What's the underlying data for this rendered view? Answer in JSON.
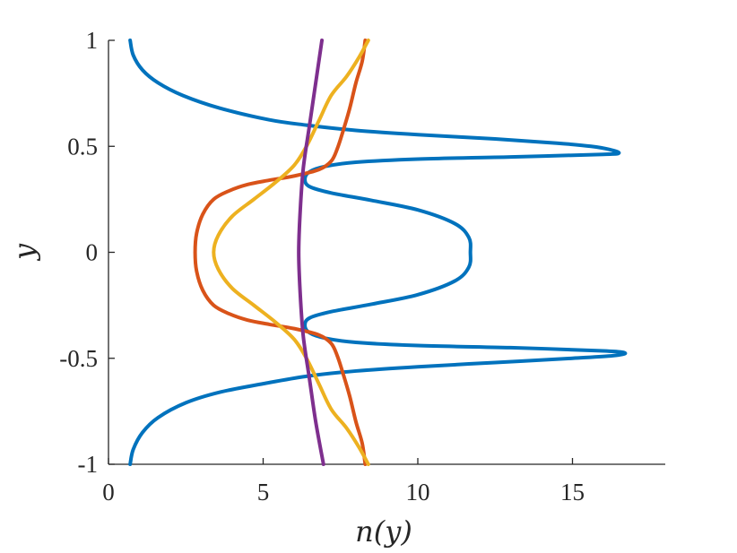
{
  "chart_data": {
    "type": "line",
    "title": "",
    "xlabel": "n(y)",
    "ylabel": "y",
    "xlim": [
      0,
      18
    ],
    "ylim": [
      -1,
      1
    ],
    "xticks": [
      0,
      5,
      10,
      15
    ],
    "xtick_labels": [
      "0",
      "5",
      "10",
      "15"
    ],
    "yticks": [
      -1,
      -0.5,
      0,
      0.5,
      1
    ],
    "ytick_labels": [
      "-1",
      "-0.5",
      "0",
      "0.5",
      "1"
    ],
    "grid": false,
    "legend": "none",
    "series": [
      {
        "color": "#0072BD",
        "points": [
          [
            0.7,
            1.0
          ],
          [
            0.8,
            0.93
          ],
          [
            1.1,
            0.86
          ],
          [
            1.6,
            0.8
          ],
          [
            2.4,
            0.74
          ],
          [
            3.6,
            0.68
          ],
          [
            5.2,
            0.625
          ],
          [
            6.4,
            0.6
          ],
          [
            8.0,
            0.575
          ],
          [
            10.0,
            0.555
          ],
          [
            12.5,
            0.535
          ],
          [
            14.5,
            0.515
          ],
          [
            15.6,
            0.5
          ],
          [
            16.2,
            0.485
          ],
          [
            16.5,
            0.468
          ],
          [
            16.0,
            0.462
          ],
          [
            13.0,
            0.45
          ],
          [
            10.0,
            0.44
          ],
          [
            8.0,
            0.425
          ],
          [
            7.0,
            0.405
          ],
          [
            6.5,
            0.38
          ],
          [
            6.35,
            0.345
          ],
          [
            6.5,
            0.31
          ],
          [
            7.2,
            0.28
          ],
          [
            8.5,
            0.245
          ],
          [
            10.0,
            0.2
          ],
          [
            11.2,
            0.135
          ],
          [
            11.65,
            0.07
          ],
          [
            11.7,
            0.0
          ],
          [
            11.65,
            -0.07
          ],
          [
            11.2,
            -0.135
          ],
          [
            10.0,
            -0.2
          ],
          [
            8.5,
            -0.245
          ],
          [
            7.2,
            -0.28
          ],
          [
            6.5,
            -0.31
          ],
          [
            6.35,
            -0.345
          ],
          [
            6.5,
            -0.38
          ],
          [
            7.0,
            -0.405
          ],
          [
            8.0,
            -0.425
          ],
          [
            10.0,
            -0.44
          ],
          [
            13.0,
            -0.45
          ],
          [
            16.0,
            -0.465
          ],
          [
            16.7,
            -0.475
          ],
          [
            16.3,
            -0.488
          ],
          [
            15.0,
            -0.5
          ],
          [
            12.5,
            -0.52
          ],
          [
            10.0,
            -0.54
          ],
          [
            8.0,
            -0.56
          ],
          [
            6.4,
            -0.585
          ],
          [
            5.0,
            -0.62
          ],
          [
            3.6,
            -0.66
          ],
          [
            2.5,
            -0.71
          ],
          [
            1.6,
            -0.78
          ],
          [
            1.1,
            -0.85
          ],
          [
            0.8,
            -0.93
          ],
          [
            0.7,
            -1.0
          ]
        ]
      },
      {
        "color": "#D95319",
        "points": [
          [
            8.3,
            1.0
          ],
          [
            8.2,
            0.9
          ],
          [
            8.0,
            0.8
          ],
          [
            7.8,
            0.68
          ],
          [
            7.6,
            0.58
          ],
          [
            7.4,
            0.49
          ],
          [
            7.2,
            0.43
          ],
          [
            6.8,
            0.39
          ],
          [
            6.0,
            0.36
          ],
          [
            5.2,
            0.34
          ],
          [
            4.5,
            0.32
          ],
          [
            3.9,
            0.29
          ],
          [
            3.4,
            0.25
          ],
          [
            3.05,
            0.18
          ],
          [
            2.85,
            0.09
          ],
          [
            2.8,
            0.0
          ],
          [
            2.85,
            -0.09
          ],
          [
            3.05,
            -0.18
          ],
          [
            3.4,
            -0.25
          ],
          [
            3.9,
            -0.29
          ],
          [
            4.5,
            -0.32
          ],
          [
            5.2,
            -0.34
          ],
          [
            6.0,
            -0.36
          ],
          [
            6.8,
            -0.39
          ],
          [
            7.2,
            -0.43
          ],
          [
            7.4,
            -0.49
          ],
          [
            7.6,
            -0.58
          ],
          [
            7.8,
            -0.68
          ],
          [
            8.0,
            -0.8
          ],
          [
            8.2,
            -0.9
          ],
          [
            8.3,
            -1.0
          ]
        ]
      },
      {
        "color": "#EDB120",
        "points": [
          [
            8.4,
            1.0
          ],
          [
            8.1,
            0.92
          ],
          [
            7.7,
            0.83
          ],
          [
            7.2,
            0.74
          ],
          [
            6.8,
            0.62
          ],
          [
            6.4,
            0.5
          ],
          [
            6.0,
            0.41
          ],
          [
            5.4,
            0.33
          ],
          [
            4.7,
            0.25
          ],
          [
            4.0,
            0.17
          ],
          [
            3.55,
            0.08
          ],
          [
            3.4,
            0.0
          ],
          [
            3.55,
            -0.08
          ],
          [
            4.0,
            -0.17
          ],
          [
            4.7,
            -0.25
          ],
          [
            5.4,
            -0.33
          ],
          [
            6.0,
            -0.41
          ],
          [
            6.4,
            -0.5
          ],
          [
            6.8,
            -0.62
          ],
          [
            7.2,
            -0.74
          ],
          [
            7.7,
            -0.83
          ],
          [
            8.1,
            -0.92
          ],
          [
            8.4,
            -1.0
          ]
        ]
      },
      {
        "color": "#7E2F8E",
        "points": [
          [
            6.9,
            1.0
          ],
          [
            6.7,
            0.8
          ],
          [
            6.5,
            0.6
          ],
          [
            6.3,
            0.4
          ],
          [
            6.2,
            0.2
          ],
          [
            6.15,
            0.0
          ],
          [
            6.2,
            -0.2
          ],
          [
            6.3,
            -0.4
          ],
          [
            6.5,
            -0.6
          ],
          [
            6.7,
            -0.8
          ],
          [
            6.95,
            -1.0
          ]
        ]
      }
    ]
  }
}
